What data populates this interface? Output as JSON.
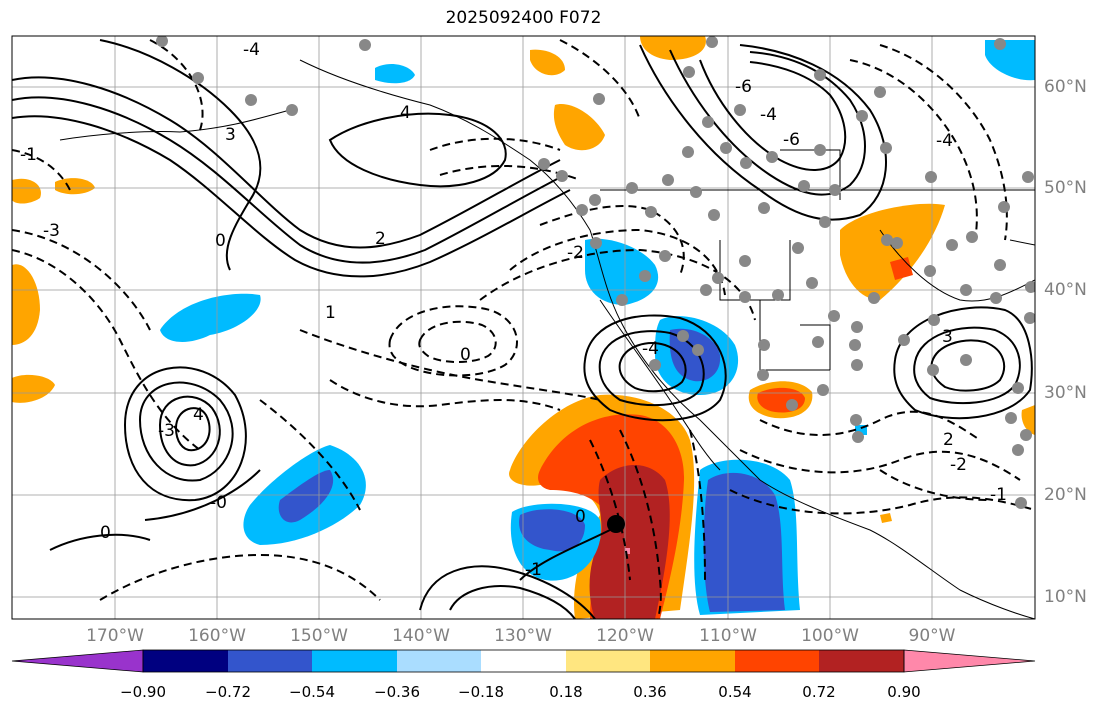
{
  "title": "2025092400 F072",
  "latitude_labels": [
    "60°N",
    "50°N",
    "40°N",
    "30°N",
    "20°N",
    "10°N"
  ],
  "longitude_labels": [
    "170°W",
    "160°W",
    "150°W",
    "140°W",
    "130°W",
    "120°W",
    "110°W",
    "100°W",
    "90°W"
  ],
  "colorbar": {
    "tick_labels": [
      "−0.90",
      "−0.72",
      "−0.54",
      "−0.36",
      "−0.18",
      "0.18",
      "0.36",
      "0.54",
      "0.72",
      "0.90"
    ],
    "colors": [
      "#9933cc",
      "#000080",
      "#3355cc",
      "#00bbff",
      "#aaddff",
      "#ffffff",
      "#ffe680",
      "#ffa500",
      "#ff4400",
      "#b22222",
      "#ff88aa"
    ]
  },
  "contour_labels": [
    "-4",
    "4",
    "-3",
    "3",
    "-2",
    "2",
    "-1",
    "1",
    "0",
    "-4",
    "4",
    "3",
    "-3",
    "0",
    "-2",
    "-1",
    "-6",
    "-6",
    "-4",
    "0",
    "0",
    "2",
    "-0",
    "-1",
    "-4"
  ],
  "markers": {
    "storm_center": "black-dot",
    "station_points": "gray-dots"
  }
}
